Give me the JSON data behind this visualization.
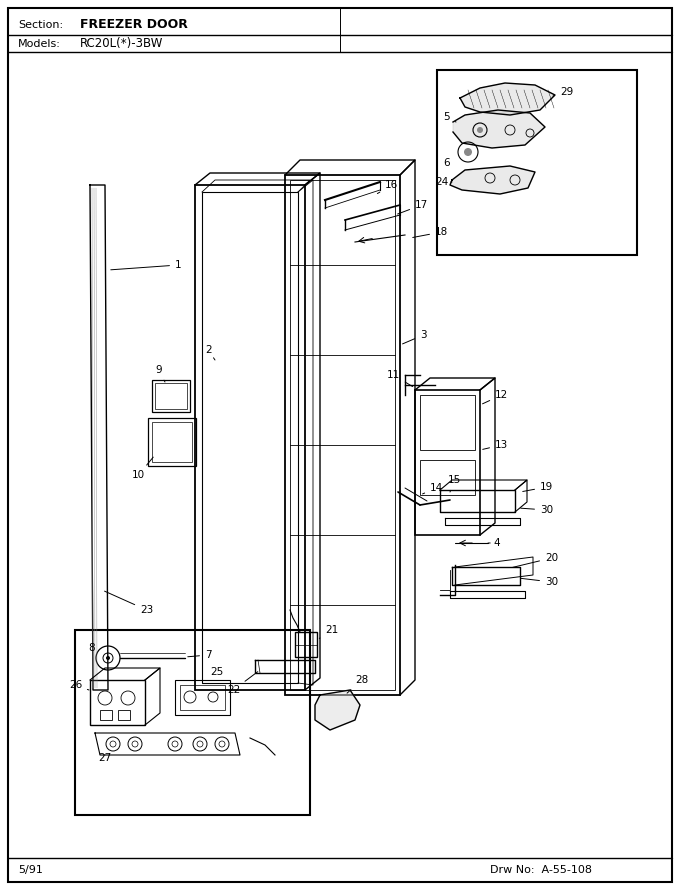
{
  "title_section": "Section:",
  "title_section_value": "FREEZER DOOR",
  "title_models": "Models:",
  "title_models_value": "RC20L(*)-3BW",
  "footer_left": "5/91",
  "footer_right": "Drw No:  A-55-108",
  "bg_color": "#ffffff",
  "border_color": "#000000",
  "line_color": "#000000",
  "gray_light": "#d8d8d8",
  "gray_mid": "#aaaaaa",
  "inset_bg": "#e8e8e8"
}
